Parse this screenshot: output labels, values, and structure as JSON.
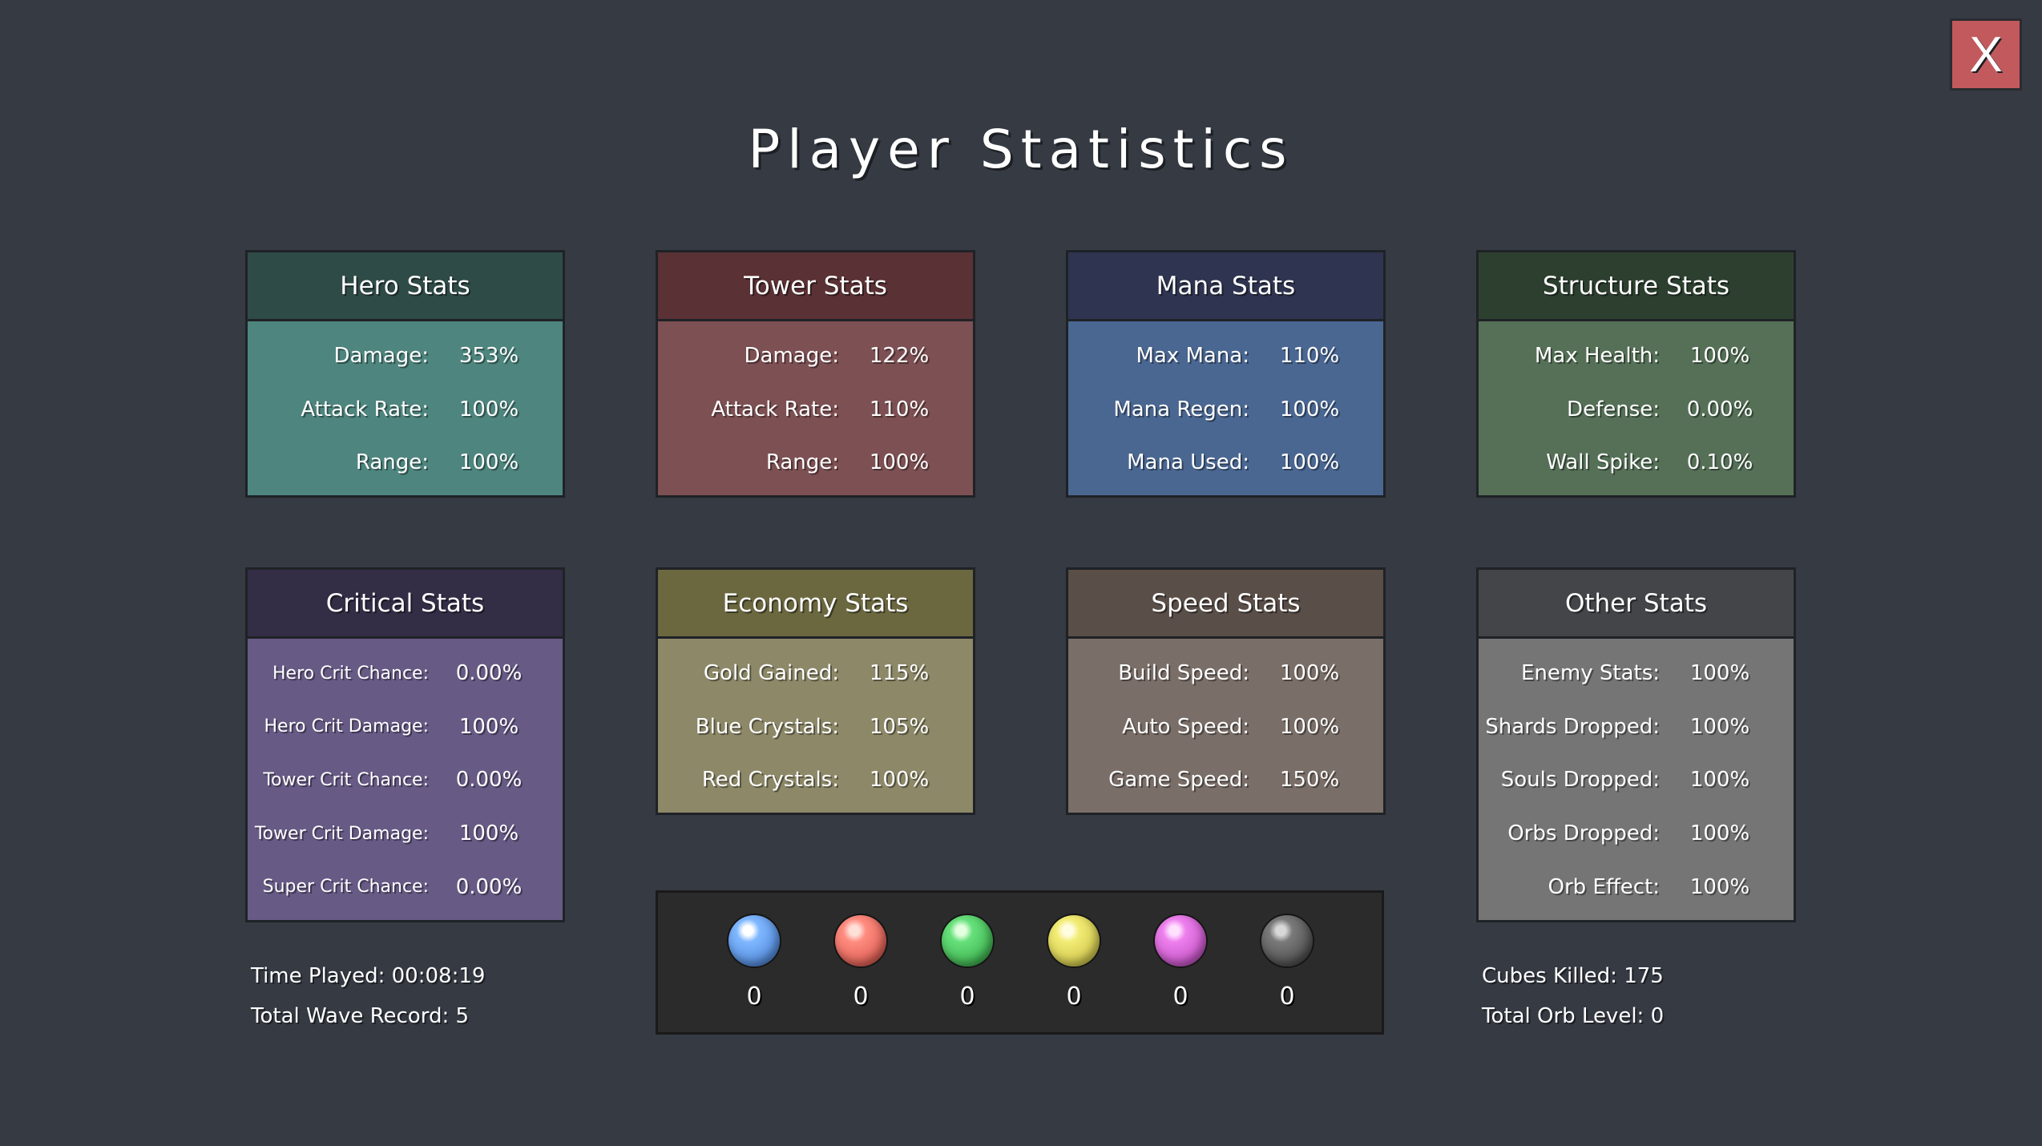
{
  "title": "Player Statistics",
  "close_label": "X",
  "panels": [
    {
      "title": "Hero Stats",
      "rows": [
        [
          "Damage:",
          "353%"
        ],
        [
          "Attack Rate:",
          "100%"
        ],
        [
          "Range:",
          "100%"
        ]
      ]
    },
    {
      "title": "Tower Stats",
      "rows": [
        [
          "Damage:",
          "122%"
        ],
        [
          "Attack Rate:",
          "110%"
        ],
        [
          "Range:",
          "100%"
        ]
      ]
    },
    {
      "title": "Mana Stats",
      "rows": [
        [
          "Max Mana:",
          "110%"
        ],
        [
          "Mana Regen:",
          "100%"
        ],
        [
          "Mana Used:",
          "100%"
        ]
      ]
    },
    {
      "title": "Structure Stats",
      "rows": [
        [
          "Max Health:",
          "100%"
        ],
        [
          "Defense:",
          "0.00%"
        ],
        [
          "Wall Spike:",
          "0.10%"
        ]
      ]
    },
    {
      "title": "Critical Stats",
      "rows": [
        [
          "Hero Crit Chance:",
          "0.00%"
        ],
        [
          "Hero Crit Damage:",
          "100%"
        ],
        [
          "Tower Crit Chance:",
          "0.00%"
        ],
        [
          "Tower Crit Damage:",
          "100%"
        ],
        [
          "Super Crit Chance:",
          "0.00%"
        ]
      ]
    },
    {
      "title": "Economy Stats",
      "rows": [
        [
          "Gold Gained:",
          "115%"
        ],
        [
          "Blue Crystals:",
          "105%"
        ],
        [
          "Red Crystals:",
          "100%"
        ]
      ]
    },
    {
      "title": "Speed Stats",
      "rows": [
        [
          "Build Speed:",
          "100%"
        ],
        [
          "Auto Speed:",
          "100%"
        ],
        [
          "Game Speed:",
          "150%"
        ]
      ]
    },
    {
      "title": "Other Stats",
      "rows": [
        [
          "Enemy Stats:",
          "100%"
        ],
        [
          "Shards Dropped:",
          "100%"
        ],
        [
          "Souls Dropped:",
          "100%"
        ],
        [
          "Orbs Dropped:",
          "100%"
        ],
        [
          "Orb Effect:",
          "100%"
        ]
      ]
    }
  ],
  "colors": {
    "hero": {
      "head": "#2f4b47",
      "body": "#4e857e"
    },
    "tower": {
      "head": "#5a3134",
      "body": "#7d5053"
    },
    "mana": {
      "head": "#2f3550",
      "body": "#4a6792"
    },
    "structure": {
      "head": "#2d4030",
      "body": "#557057"
    },
    "critical": {
      "head": "#332d45",
      "body": "#675a85"
    },
    "economy": {
      "head": "#6b6840",
      "body": "#8c8868"
    },
    "speed": {
      "head": "#5a4e48",
      "body": "#7a6e68"
    },
    "other": {
      "head": "#434548",
      "body": "#757575"
    }
  },
  "orbs": [
    {
      "color": "#7fb7ff",
      "count": "0"
    },
    {
      "color": "#ff8c80",
      "count": "0"
    },
    {
      "color": "#66e07a",
      "count": "0"
    },
    {
      "color": "#f2ec74",
      "count": "0"
    },
    {
      "color": "#ee80ee",
      "count": "0"
    },
    {
      "color": "#7a7a7a",
      "count": "0"
    }
  ],
  "info_left": {
    "time_played": "Time Played: 00:08:19",
    "wave_record": "Total Wave Record: 5"
  },
  "info_right": {
    "cubes_killed": "Cubes Killed: 175",
    "orb_level": "Total Orb Level: 0"
  }
}
